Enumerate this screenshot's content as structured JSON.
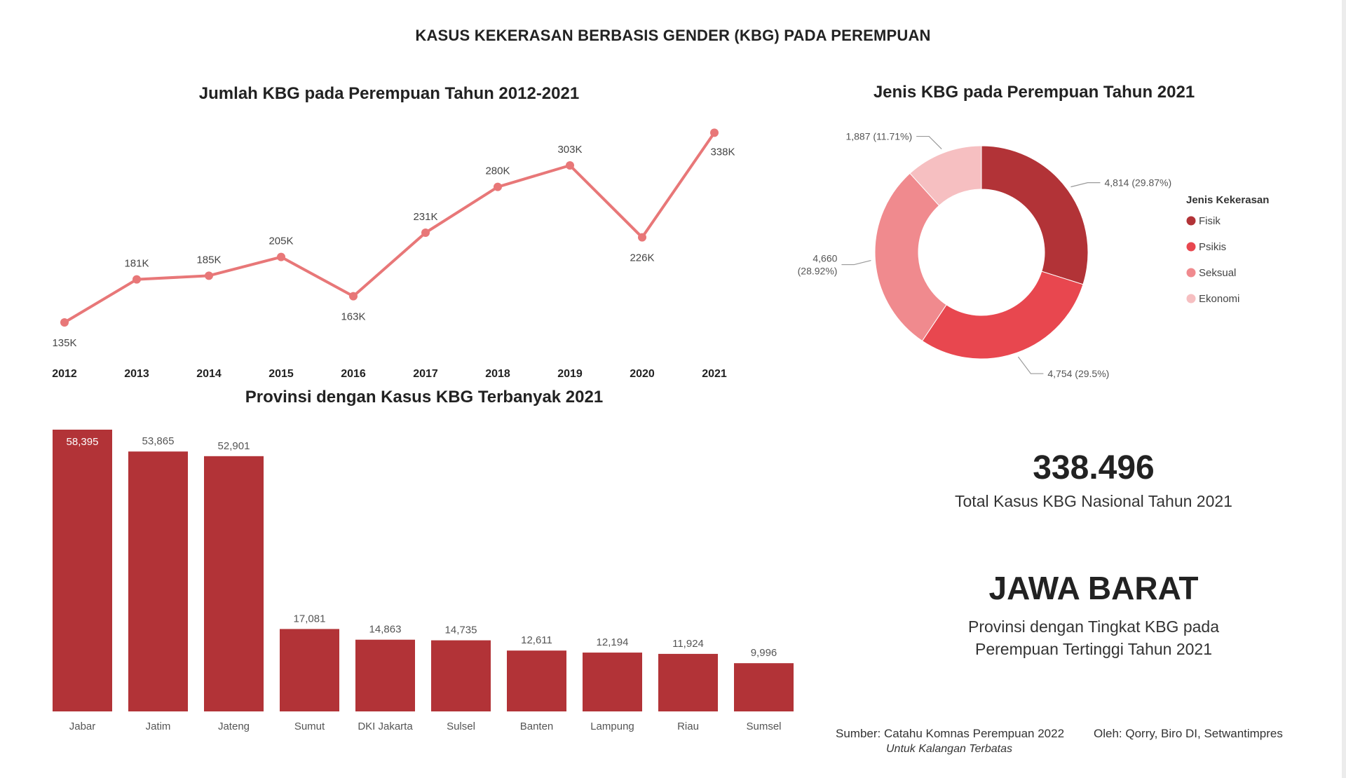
{
  "page": {
    "main_title": "KASUS KEKERASAN BERBASIS GENDER (KBG) PADA PEREMPUAN"
  },
  "colors": {
    "line": "#E87778",
    "bar": "#B23337",
    "fisik": "#B23337",
    "psikis": "#E8474F",
    "seksual": "#F08A8E",
    "ekonomi": "#F6BFC1"
  },
  "chart_data": [
    {
      "type": "line",
      "title": "Jumlah KBG pada Perempuan Tahun 2012-2021",
      "x": [
        "2012",
        "2013",
        "2014",
        "2015",
        "2016",
        "2017",
        "2018",
        "2019",
        "2020",
        "2021"
      ],
      "values": [
        135,
        181,
        185,
        205,
        163,
        231,
        280,
        303,
        226,
        338
      ],
      "data_labels": [
        "135K",
        "181K",
        "185K",
        "205K",
        "163K",
        "231K",
        "280K",
        "303K",
        "226K",
        "338K"
      ],
      "xlabel": "",
      "ylabel": "",
      "ylim": [
        120,
        345
      ],
      "grid": false
    },
    {
      "type": "pie",
      "title": "Jenis KBG pada Perempuan Tahun 2021",
      "legend_title": "Jenis Kekerasan",
      "legend_position": "right",
      "categories": [
        "Fisik",
        "Psikis",
        "Seksual",
        "Ekonomi"
      ],
      "values": [
        4814,
        4754,
        4660,
        1887
      ],
      "data_labels": [
        "4,814 (29.87%)",
        "4,754 (29.5%)",
        "4,660 (28.92%)",
        "1,887 (11.71%)"
      ]
    },
    {
      "type": "bar",
      "title": "Provinsi dengan Kasus KBG Terbanyak 2021",
      "categories": [
        "Jabar",
        "Jatim",
        "Jateng",
        "Sumut",
        "DKI Jakarta",
        "Sulsel",
        "Banten",
        "Lampung",
        "Riau",
        "Sumsel"
      ],
      "values": [
        58395,
        53865,
        52901,
        17081,
        14863,
        14735,
        12611,
        12194,
        11924,
        9996
      ],
      "data_labels": [
        "58,395",
        "53,865",
        "52,901",
        "17,081",
        "14,863",
        "14,735",
        "12,611",
        "12,194",
        "11,924",
        "9,996"
      ],
      "xlabel": "",
      "ylabel": "",
      "ylim": [
        0,
        58395
      ],
      "grid": false
    }
  ],
  "stats": {
    "total_number": "338.496",
    "total_caption": "Total Kasus KBG Nasional Tahun 2021",
    "top_province": "JAWA BARAT",
    "top_province_caption": "Provinsi dengan Tingkat KBG pada Perempuan Tertinggi Tahun 2021"
  },
  "footer": {
    "source": "Sumber: Catahu Komnas Perempuan 2022",
    "author": "Oleh: Qorry, Biro DI, Setwantimpres",
    "note": "Untuk Kalangan Terbatas"
  }
}
